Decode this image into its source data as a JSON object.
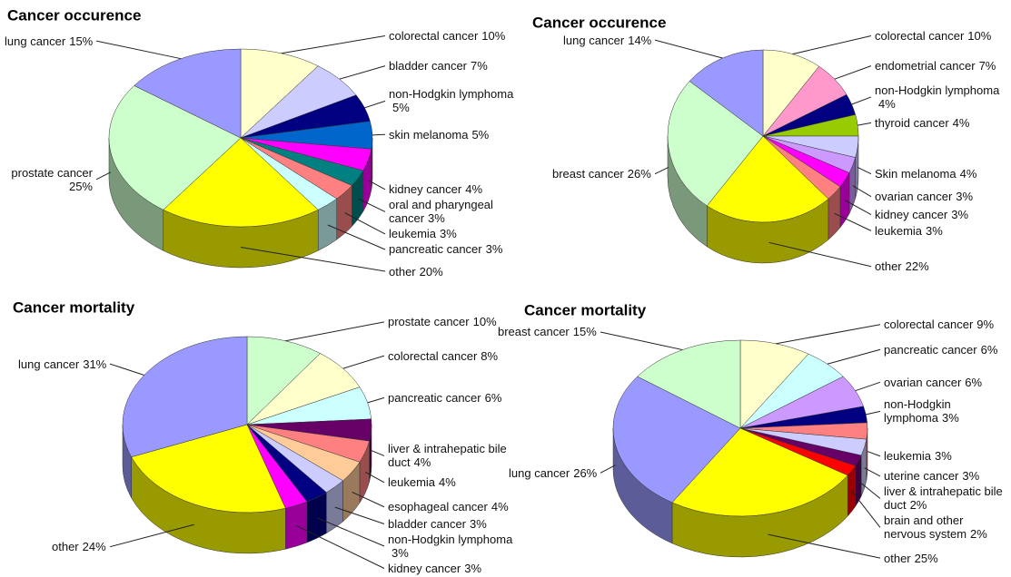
{
  "chart_data": [
    {
      "type": "pie",
      "title": "Cancer occurence",
      "categories": [
        "colorectal cancer",
        "bladder cancer",
        "non-Hodgkin lymphoma",
        "skin melanoma",
        "kidney cancer",
        "oral and pharyngeal cancer",
        "leukemia",
        "pancreatic cancer",
        "other",
        "prostate cancer",
        "lung cancer"
      ],
      "values": [
        10,
        7,
        5,
        5,
        4,
        3,
        3,
        3,
        20,
        25,
        15
      ],
      "value_labels": [
        "10%",
        "7%",
        "5%",
        "5%",
        "4%",
        "3%",
        "3%",
        "3%",
        "20%",
        "25%",
        "15%"
      ],
      "colors": [
        "#ffffcc",
        "#ccccff",
        "#000080",
        "#0066cc",
        "#ff00ff",
        "#008080",
        "#ff8080",
        "#ccffff",
        "#ffff00",
        "#ccffcc",
        "#9999ff"
      ]
    },
    {
      "type": "pie",
      "title": "Cancer occurence",
      "categories": [
        "colorectal cancer",
        "endometrial cancer",
        "non-Hodgkin lymphoma",
        "thyroid cancer",
        "Skin melanoma",
        "ovarian cancer",
        "kidney cancer",
        "leukemia",
        "other",
        "breast cancer",
        "lung cancer"
      ],
      "values": [
        10,
        7,
        4,
        4,
        4,
        3,
        3,
        3,
        22,
        26,
        14
      ],
      "value_labels": [
        "10%",
        "7%",
        "4%",
        "4%",
        "4%",
        "3%",
        "3%",
        "3%",
        "22%",
        "26%",
        "14%"
      ],
      "colors": [
        "#ffffcc",
        "#ff99cc",
        "#000080",
        "#99cc00",
        "#ccccff",
        "#cc99ff",
        "#ff00ff",
        "#ff8080",
        "#ffff00",
        "#ccffcc",
        "#9999ff"
      ]
    },
    {
      "type": "pie",
      "title": "Cancer mortality",
      "categories": [
        "prostate cancer",
        "colorectal cancer",
        "pancreatic cancer",
        "liver & intrahepatic bile duct",
        "leukemia",
        "esophageal cancer",
        "bladder cancer",
        "non-Hodgkin lymphoma",
        "kidney cancer",
        "other",
        "lung cancer"
      ],
      "values": [
        10,
        8,
        6,
        4,
        4,
        4,
        3,
        3,
        3,
        24,
        31
      ],
      "value_labels": [
        "10%",
        "8%",
        "6%",
        "4%",
        "4%",
        "4%",
        "3%",
        "3%",
        "3%",
        "24%",
        "31%"
      ],
      "colors": [
        "#ccffcc",
        "#ffffcc",
        "#ccffff",
        "#660066",
        "#ff8080",
        "#ffcc99",
        "#ccccff",
        "#000080",
        "#ff00ff",
        "#ffff00",
        "#9999ff"
      ]
    },
    {
      "type": "pie",
      "title": "Cancer mortality",
      "categories": [
        "colorectal cancer",
        "pancreatic cancer",
        "ovarian cancer",
        "non-Hodgkin lymphoma",
        "leukemia",
        "uterine cancer",
        "liver & intrahepatic bile duct",
        "brain and other nervous system",
        "other",
        "lung cancer",
        "breast cancer"
      ],
      "values": [
        9,
        6,
        6,
        3,
        3,
        3,
        2,
        2,
        25,
        26,
        15
      ],
      "value_labels": [
        "9%",
        "6%",
        "6%",
        "3%",
        "3%",
        "3%",
        "2%",
        "2%",
        "25%",
        "26%",
        "15%"
      ],
      "colors": [
        "#ffffcc",
        "#ccffff",
        "#cc99ff",
        "#000080",
        "#ff8080",
        "#ccccff",
        "#660066",
        "#ff0000",
        "#ffff00",
        "#9999ff",
        "#ccffcc"
      ]
    }
  ]
}
